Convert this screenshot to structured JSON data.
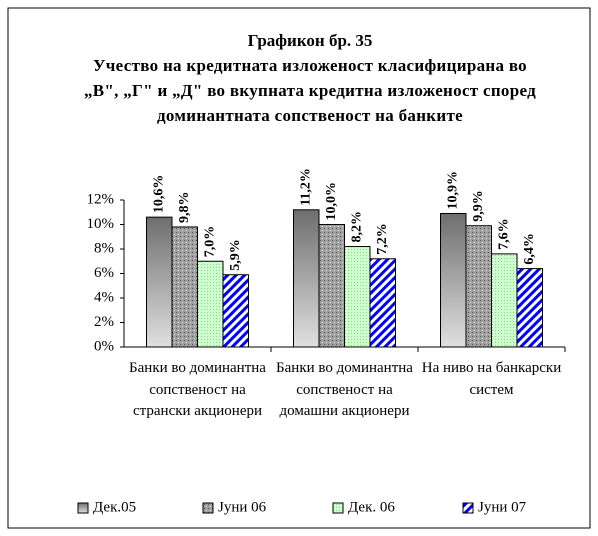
{
  "chart_data": {
    "type": "bar",
    "title": "Графикон бр. 35",
    "subtitle": "Учество на кредитната изложеност класифицирана во „В\", „Г\" и „Д\" во вкупната кредитна изложеност според доминантната сопственост на банките",
    "categories": [
      "Банки во доминантна сопственост на странски акционери",
      "Банки во доминантна сопственост на домашни акционери",
      "На ниво на банкарски систем"
    ],
    "series": [
      {
        "name": "Дек.05",
        "color": "#6e6e6e",
        "values": [
          10.6,
          11.2,
          10.9
        ],
        "value_labels": [
          "10,6%",
          "11,2%",
          "10,9%"
        ]
      },
      {
        "name": "Јуни 06",
        "color": "#a0a0a0",
        "values": [
          9.8,
          10.0,
          9.9
        ],
        "value_labels": [
          "9,8%",
          "10,0%",
          "9,9%"
        ]
      },
      {
        "name": "Дек. 06",
        "color": "#ccffcc",
        "values": [
          7.0,
          8.2,
          7.6
        ],
        "value_labels": [
          "7,0%",
          "8,2%",
          "7,6%"
        ]
      },
      {
        "name": "Јуни 07",
        "color": "#0000ff",
        "values": [
          5.9,
          7.2,
          6.4
        ],
        "value_labels": [
          "5,9%",
          "7,2%",
          "6,4%"
        ]
      }
    ],
    "ylim": [
      0,
      12
    ],
    "yticks": [
      {
        "value": 0,
        "label": "0%"
      },
      {
        "value": 2,
        "label": "2%"
      },
      {
        "value": 4,
        "label": "4%"
      },
      {
        "value": 6,
        "label": "6%"
      },
      {
        "value": 8,
        "label": "8%"
      },
      {
        "value": 10,
        "label": "10%"
      },
      {
        "value": 12,
        "label": "12%"
      }
    ],
    "legend": "bottom"
  }
}
